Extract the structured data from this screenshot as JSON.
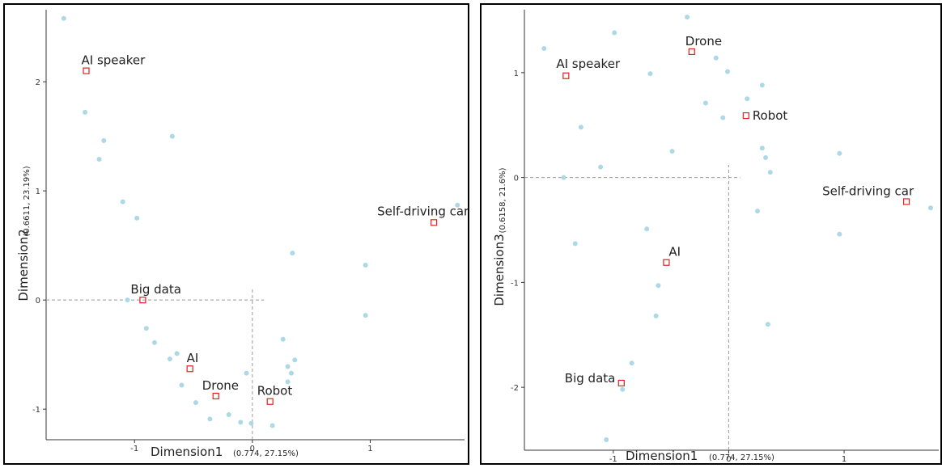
{
  "chart_data": [
    {
      "type": "scatter",
      "title": "",
      "xlabel": "Dimension1",
      "xlabel_sub": "(0.774,  27.15%)",
      "ylabel": "Dimension2",
      "ylabel_sub": "(0.6611,  23.19%)",
      "xlim": [
        -1.75,
        1.8
      ],
      "ylim": [
        -1.28,
        2.66
      ],
      "xticks": [
        -1,
        0,
        1
      ],
      "xtick_labels": [
        "-1",
        "0",
        "1"
      ],
      "yticks": [
        -1,
        0,
        1,
        2
      ],
      "ytick_labels": [
        "-1",
        "0",
        "1",
        "2"
      ],
      "grid": false,
      "colors": {
        "point": "#add8e6",
        "marker": "#e02020",
        "dashed": "#999999"
      },
      "points": [
        {
          "x": -1.6,
          "y": 2.58
        },
        {
          "x": -1.42,
          "y": 1.72
        },
        {
          "x": -1.26,
          "y": 1.46
        },
        {
          "x": -1.3,
          "y": 1.29
        },
        {
          "x": -0.68,
          "y": 1.5
        },
        {
          "x": -1.1,
          "y": 0.9
        },
        {
          "x": -0.98,
          "y": 0.75
        },
        {
          "x": -1.06,
          "y": 0.0
        },
        {
          "x": -0.9,
          "y": -0.26
        },
        {
          "x": -0.83,
          "y": -0.39
        },
        {
          "x": -0.7,
          "y": -0.54
        },
        {
          "x": -0.64,
          "y": -0.49
        },
        {
          "x": -0.6,
          "y": -0.78
        },
        {
          "x": -0.48,
          "y": -0.94
        },
        {
          "x": -0.36,
          "y": -1.09
        },
        {
          "x": -0.2,
          "y": -1.05
        },
        {
          "x": -0.1,
          "y": -1.12
        },
        {
          "x": -0.05,
          "y": -0.67
        },
        {
          "x": -0.01,
          "y": -1.13
        },
        {
          "x": 0.17,
          "y": -1.15
        },
        {
          "x": 0.26,
          "y": -0.36
        },
        {
          "x": 0.3,
          "y": -0.61
        },
        {
          "x": 0.3,
          "y": -0.75
        },
        {
          "x": 0.33,
          "y": -0.67
        },
        {
          "x": 0.36,
          "y": -0.55
        },
        {
          "x": 0.34,
          "y": 0.43
        },
        {
          "x": 0.96,
          "y": 0.32
        },
        {
          "x": 0.96,
          "y": -0.14
        },
        {
          "x": 1.74,
          "y": 0.87
        }
      ],
      "markers": [
        {
          "x": -1.41,
          "y": 2.1,
          "label": "AI speaker",
          "label_dx": -6,
          "label_dy": -8
        },
        {
          "x": 1.54,
          "y": 0.71,
          "label": "Self-driving car",
          "label_dx": -70,
          "label_dy": -9
        },
        {
          "x": -0.93,
          "y": 0.0,
          "label": "Big data",
          "label_dx": -15,
          "label_dy": -8
        },
        {
          "x": -0.53,
          "y": -0.63,
          "label": "AI",
          "label_dx": -4,
          "label_dy": -8
        },
        {
          "x": -0.31,
          "y": -0.88,
          "label": "Drone",
          "label_dx": -17,
          "label_dy": -8
        },
        {
          "x": 0.15,
          "y": -0.93,
          "label": "Robot",
          "label_dx": -16,
          "label_dy": -8
        }
      ],
      "dashed_h": {
        "y": 0,
        "x_from": -1.75,
        "x_to": 0.1
      },
      "dashed_v": {
        "x": 0,
        "y_from": -1.28,
        "y_to": 0.1
      }
    },
    {
      "type": "scatter",
      "title": "",
      "xlabel": "Dimension1",
      "xlabel_sub": "(0.774,  27.15%)",
      "ylabel": "Dimension3",
      "ylabel_sub": "(0.6158,  21.6%)",
      "xlim": [
        -1.77,
        1.82
      ],
      "ylim": [
        -2.6,
        1.6
      ],
      "xticks": [
        -1,
        0,
        1
      ],
      "xtick_labels": [
        "-1",
        "0",
        "1"
      ],
      "yticks": [
        -2,
        -1,
        0,
        1
      ],
      "ytick_labels": [
        "-2",
        "-1",
        "0",
        "1"
      ],
      "grid": false,
      "colors": {
        "point": "#add8e6",
        "marker": "#e02020",
        "dashed": "#999999"
      },
      "points": [
        {
          "x": -1.6,
          "y": 1.23
        },
        {
          "x": -0.99,
          "y": 1.38
        },
        {
          "x": -0.36,
          "y": 1.53
        },
        {
          "x": -0.68,
          "y": 0.99
        },
        {
          "x": -0.11,
          "y": 1.14
        },
        {
          "x": -0.01,
          "y": 1.01
        },
        {
          "x": 0.29,
          "y": 0.88
        },
        {
          "x": 0.16,
          "y": 0.75
        },
        {
          "x": -0.2,
          "y": 0.71
        },
        {
          "x": -0.05,
          "y": 0.57
        },
        {
          "x": -1.28,
          "y": 0.48
        },
        {
          "x": -0.49,
          "y": 0.25
        },
        {
          "x": -1.11,
          "y": 0.1
        },
        {
          "x": -1.43,
          "y": 0.0
        },
        {
          "x": 0.29,
          "y": 0.28
        },
        {
          "x": 0.32,
          "y": 0.19
        },
        {
          "x": 0.36,
          "y": 0.05
        },
        {
          "x": 0.96,
          "y": 0.23
        },
        {
          "x": 0.25,
          "y": -0.32
        },
        {
          "x": 0.96,
          "y": -0.54
        },
        {
          "x": 1.75,
          "y": -0.29
        },
        {
          "x": -0.71,
          "y": -0.49
        },
        {
          "x": -1.33,
          "y": -0.63
        },
        {
          "x": -0.61,
          "y": -1.03
        },
        {
          "x": -0.63,
          "y": -1.32
        },
        {
          "x": 0.34,
          "y": -1.4
        },
        {
          "x": -0.84,
          "y": -1.77
        },
        {
          "x": -0.92,
          "y": -2.02
        },
        {
          "x": -1.06,
          "y": -2.5
        }
      ],
      "markers": [
        {
          "x": -1.41,
          "y": 0.97,
          "label": "AI speaker",
          "label_dx": -12,
          "label_dy": -10
        },
        {
          "x": -0.32,
          "y": 1.2,
          "label": "Drone",
          "label_dx": -8,
          "label_dy": -8
        },
        {
          "x": 0.15,
          "y": 0.59,
          "label": "Robot",
          "label_dx": 8,
          "label_dy": 5
        },
        {
          "x": 1.54,
          "y": -0.23,
          "label": "Self-driving car",
          "label_dx": -104,
          "label_dy": -8
        },
        {
          "x": -0.54,
          "y": -0.81,
          "label": "AI",
          "label_dx": 3,
          "label_dy": -8
        },
        {
          "x": -0.93,
          "y": -1.96,
          "label": "Big data",
          "label_dx": -70,
          "label_dy": -1
        }
      ],
      "dashed_h": {
        "y": 0,
        "x_from": -1.77,
        "x_to": 0.1
      },
      "dashed_v": {
        "x": 0,
        "y_from": -2.6,
        "y_to": 0.12
      }
    }
  ]
}
